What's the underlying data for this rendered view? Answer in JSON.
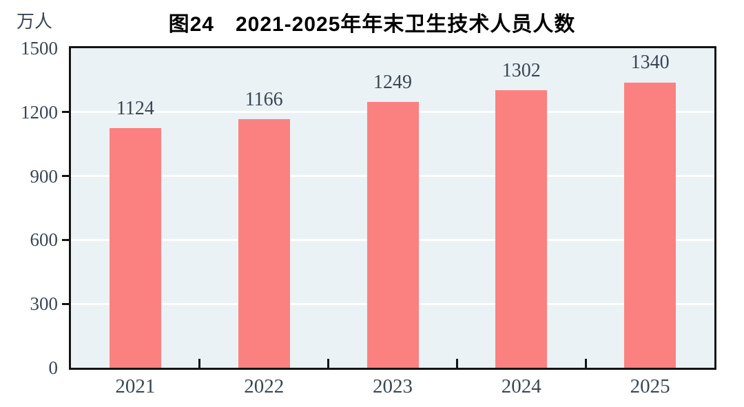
{
  "chart_data": {
    "type": "bar",
    "title": "图24　2021-2025年年末卫生技术人员人数",
    "unit_label": "万人",
    "categories": [
      "2021",
      "2022",
      "2023",
      "2024",
      "2025"
    ],
    "values": [
      1124,
      1166,
      1249,
      1302,
      1340
    ],
    "value_labels": [
      "1124",
      "1166",
      "1249",
      "1302",
      "1340"
    ],
    "ylim": [
      0,
      1500
    ],
    "ytick_interval": 300,
    "yticks": [
      0,
      300,
      600,
      900,
      1200,
      1500
    ],
    "grid": true,
    "legend_position": "none",
    "colors": {
      "bar": "#FB8181",
      "plot_background": "#EAF2F5",
      "gridline": "#FFFFFF",
      "axis": "#141414",
      "tick_label": "#3A4654",
      "title": "#000000",
      "page_background": "#FFFFFF"
    }
  }
}
